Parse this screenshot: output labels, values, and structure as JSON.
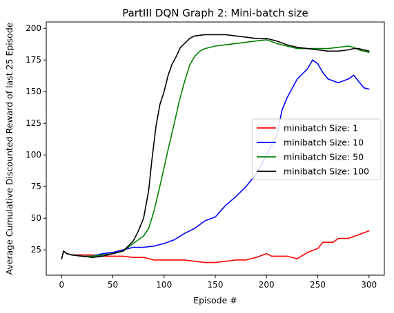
{
  "chart_data": {
    "type": "line",
    "title": "PartIII DQN Graph 2: Mini-batch size",
    "xlabel": "Episode #",
    "ylabel": "Average Cumulative Discounted Reward of last 25 Episode",
    "xlim": [
      -15,
      315
    ],
    "ylim": [
      5,
      205
    ],
    "xticks": [
      0,
      50,
      100,
      150,
      200,
      250,
      300
    ],
    "yticks": [
      25,
      50,
      75,
      100,
      125,
      150,
      175,
      200
    ],
    "grid": false,
    "legend_position": "center-right",
    "series": [
      {
        "name": "minibatch Size: 1",
        "color": "#ff0000",
        "x": [
          0,
          2,
          5,
          10,
          20,
          30,
          40,
          50,
          60,
          70,
          80,
          90,
          100,
          110,
          120,
          130,
          140,
          150,
          160,
          170,
          180,
          190,
          200,
          205,
          210,
          220,
          230,
          240,
          250,
          255,
          265,
          270,
          280,
          290,
          300
        ],
        "y": [
          18,
          24,
          22,
          21,
          21,
          21,
          20,
          20,
          20,
          19,
          19,
          17,
          17,
          17,
          17,
          16,
          15,
          15,
          16,
          17,
          17,
          19,
          22,
          20,
          20,
          20,
          18,
          23,
          26,
          31,
          31,
          34,
          34,
          37,
          40
        ]
      },
      {
        "name": "minibatch Size: 10",
        "color": "#0000ff",
        "x": [
          0,
          2,
          5,
          10,
          20,
          30,
          40,
          50,
          60,
          70,
          80,
          90,
          100,
          110,
          120,
          130,
          140,
          150,
          160,
          170,
          180,
          190,
          200,
          210,
          215,
          220,
          230,
          240,
          245,
          250,
          255,
          260,
          270,
          280,
          285,
          290,
          295,
          300
        ],
        "y": [
          18,
          24,
          22,
          21,
          20,
          20,
          22,
          23,
          25,
          27,
          27,
          28,
          30,
          33,
          38,
          42,
          48,
          51,
          60,
          67,
          75,
          85,
          100,
          115,
          135,
          145,
          160,
          168,
          175,
          172,
          165,
          160,
          157,
          160,
          163,
          158,
          153,
          152
        ]
      },
      {
        "name": "minibatch Size: 50",
        "color": "#008000",
        "x": [
          0,
          2,
          5,
          10,
          20,
          30,
          40,
          50,
          60,
          70,
          80,
          85,
          90,
          95,
          100,
          105,
          110,
          115,
          120,
          125,
          130,
          135,
          140,
          150,
          160,
          170,
          180,
          190,
          200,
          210,
          220,
          230,
          240,
          250,
          260,
          270,
          280,
          285,
          290,
          295,
          300
        ],
        "y": [
          18,
          24,
          22,
          21,
          20,
          20,
          21,
          22,
          24,
          30,
          36,
          42,
          55,
          72,
          90,
          108,
          125,
          143,
          158,
          171,
          178,
          182,
          184,
          186,
          187,
          188,
          189,
          190,
          191,
          188,
          186,
          184,
          184,
          184,
          184,
          185,
          186,
          185,
          183,
          182,
          181
        ]
      },
      {
        "name": "minibatch Size: 100",
        "color": "#000000",
        "x": [
          0,
          2,
          5,
          10,
          20,
          30,
          40,
          50,
          60,
          70,
          75,
          80,
          85,
          88,
          92,
          96,
          100,
          104,
          108,
          112,
          116,
          120,
          125,
          130,
          140,
          150,
          160,
          170,
          180,
          190,
          200,
          210,
          220,
          230,
          240,
          250,
          260,
          270,
          280,
          285,
          290,
          295,
          300
        ],
        "y": [
          18,
          24,
          22,
          21,
          20,
          19,
          20,
          22,
          24,
          32,
          40,
          50,
          72,
          95,
          122,
          140,
          150,
          163,
          172,
          178,
          185,
          188,
          192,
          194,
          195,
          195,
          195,
          194,
          193,
          192,
          192,
          190,
          187,
          185,
          184,
          183,
          182,
          182,
          183,
          184,
          184,
          183,
          182
        ]
      }
    ]
  }
}
